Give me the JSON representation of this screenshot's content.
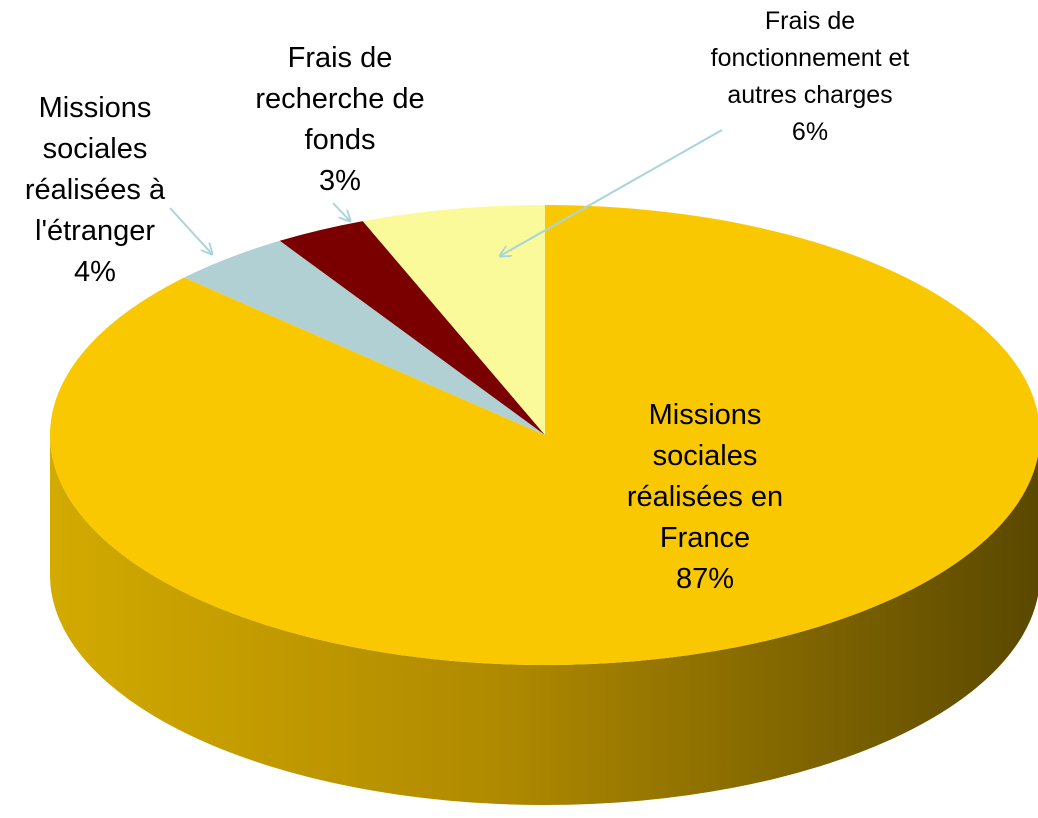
{
  "chart_data": {
    "type": "pie",
    "categories": [
      "Missions sociales réalisées en France",
      "Missions sociales réalisées à l'étranger",
      "Frais de recherche de fonds",
      "Frais de fonctionnement et autres charges"
    ],
    "values": [
      87,
      4,
      3,
      6
    ],
    "value_labels": [
      "87%",
      "4%",
      "3%",
      "6%"
    ],
    "colors": [
      "#f9c800",
      "#b0d0d4",
      "#7a0000",
      "#fafa9a"
    ]
  }
}
